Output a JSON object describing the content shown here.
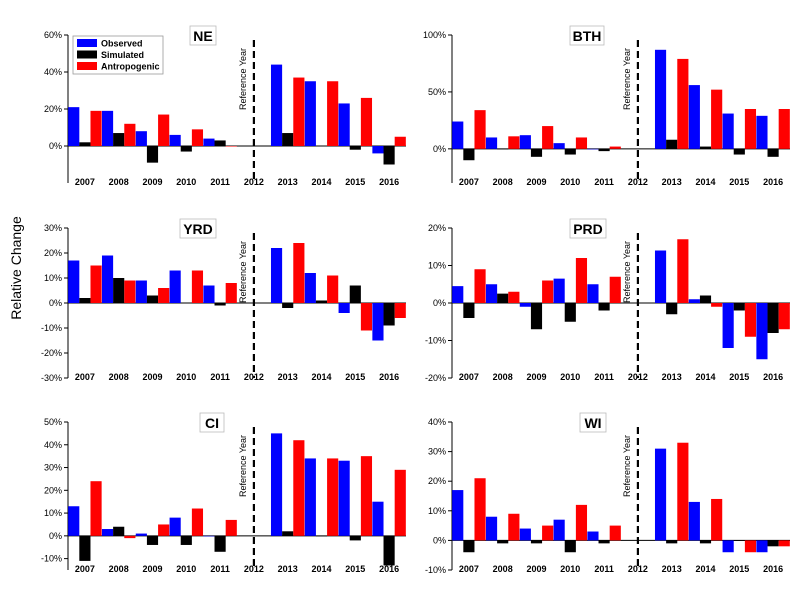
{
  "ylabel": "Relative Change",
  "legend": [
    "Observed",
    "Simulated",
    "Antropogenic"
  ],
  "reference_label": "Reference Year",
  "colors": {
    "Observed": "#0000ff",
    "Simulated": "#000000",
    "Antropogenic": "#ff0000"
  },
  "chart_data": [
    {
      "type": "bar",
      "title": "NE",
      "categories": [
        "2007",
        "2008",
        "2009",
        "2010",
        "2011",
        "2012",
        "2013",
        "2014",
        "2015",
        "2016"
      ],
      "ylim": [
        -20,
        60
      ],
      "yticks": [
        0,
        20,
        40,
        60
      ],
      "ytick_labels": [
        "0%",
        "20%",
        "40%",
        "60%"
      ],
      "series": [
        {
          "name": "Observed",
          "values": [
            21,
            19,
            8,
            6,
            4,
            null,
            44,
            35,
            23,
            -4
          ]
        },
        {
          "name": "Simulated",
          "values": [
            2,
            7,
            -9,
            -3,
            3,
            null,
            7,
            0,
            -2,
            -10
          ]
        },
        {
          "name": "Antropogenic",
          "values": [
            19,
            12,
            17,
            9,
            0,
            null,
            37,
            35,
            26,
            5
          ]
        }
      ]
    },
    {
      "type": "bar",
      "title": "BTH",
      "categories": [
        "2007",
        "2008",
        "2009",
        "2010",
        "2011",
        "2012",
        "2013",
        "2014",
        "2015",
        "2016"
      ],
      "ylim": [
        -30,
        100
      ],
      "yticks": [
        0,
        50,
        100
      ],
      "ytick_labels": [
        "0%",
        "50%",
        "100%"
      ],
      "series": [
        {
          "name": "Observed",
          "values": [
            24,
            10,
            12,
            5,
            0,
            null,
            87,
            56,
            31,
            29
          ]
        },
        {
          "name": "Simulated",
          "values": [
            -10,
            0,
            -7,
            -5,
            -2,
            null,
            8,
            2,
            -5,
            -7
          ]
        },
        {
          "name": "Antropogenic",
          "values": [
            34,
            11,
            20,
            10,
            2,
            null,
            79,
            52,
            35,
            35
          ]
        }
      ]
    },
    {
      "type": "bar",
      "title": "YRD",
      "categories": [
        "2007",
        "2008",
        "2009",
        "2010",
        "2011",
        "2012",
        "2013",
        "2014",
        "2015",
        "2016"
      ],
      "ylim": [
        -30,
        30
      ],
      "yticks": [
        -30,
        -20,
        -10,
        0,
        10,
        20,
        30
      ],
      "ytick_labels": [
        "-30%",
        "-20%",
        "-10%",
        "0%",
        "10%",
        "20%",
        "30%"
      ],
      "series": [
        {
          "name": "Observed",
          "values": [
            17,
            19,
            9,
            13,
            7,
            null,
            22,
            12,
            -4,
            -15
          ]
        },
        {
          "name": "Simulated",
          "values": [
            2,
            10,
            3,
            0,
            -1,
            null,
            -2,
            1,
            7,
            -9
          ]
        },
        {
          "name": "Antropogenic",
          "values": [
            15,
            9,
            6,
            13,
            8,
            null,
            24,
            11,
            -11,
            -6
          ]
        }
      ]
    },
    {
      "type": "bar",
      "title": "PRD",
      "categories": [
        "2007",
        "2008",
        "2009",
        "2010",
        "2011",
        "2012",
        "2013",
        "2014",
        "2015",
        "2016"
      ],
      "ylim": [
        -20,
        20
      ],
      "yticks": [
        -20,
        -10,
        0,
        10,
        20
      ],
      "ytick_labels": [
        "-20%",
        "-10%",
        "0%",
        "10%",
        "20%"
      ],
      "series": [
        {
          "name": "Observed",
          "values": [
            4.5,
            5,
            -1,
            6.5,
            5,
            null,
            14,
            1,
            -12,
            -15
          ]
        },
        {
          "name": "Simulated",
          "values": [
            -4,
            2.5,
            -7,
            -5,
            -2,
            null,
            -3,
            2,
            -2,
            -8
          ]
        },
        {
          "name": "Antropogenic",
          "values": [
            9,
            3,
            6,
            12,
            7,
            null,
            17,
            -1,
            -9,
            -7
          ]
        }
      ]
    },
    {
      "type": "bar",
      "title": "CI",
      "categories": [
        "2007",
        "2008",
        "2009",
        "2010",
        "2011",
        "2012",
        "2013",
        "2014",
        "2015",
        "2016"
      ],
      "ylim": [
        -15,
        50
      ],
      "yticks": [
        -10,
        0,
        10,
        20,
        30,
        40,
        50
      ],
      "ytick_labels": [
        "-10%",
        "0%",
        "10%",
        "20%",
        "30%",
        "40%",
        "50%"
      ],
      "series": [
        {
          "name": "Observed",
          "values": [
            13,
            3,
            1,
            8,
            0,
            null,
            45,
            34,
            33,
            15
          ]
        },
        {
          "name": "Simulated",
          "values": [
            -11,
            4,
            -4,
            -4,
            -7,
            null,
            2,
            0,
            -2,
            -13
          ]
        },
        {
          "name": "Antropogenic",
          "values": [
            24,
            -1,
            5,
            12,
            7,
            null,
            42,
            34,
            35,
            29
          ]
        }
      ]
    },
    {
      "type": "bar",
      "title": "WI",
      "categories": [
        "2007",
        "2008",
        "2009",
        "2010",
        "2011",
        "2012",
        "2013",
        "2014",
        "2015",
        "2016"
      ],
      "ylim": [
        -10,
        40
      ],
      "yticks": [
        -10,
        0,
        10,
        20,
        30,
        40
      ],
      "ytick_labels": [
        "-10%",
        "0%",
        "10%",
        "20%",
        "30%",
        "40%"
      ],
      "series": [
        {
          "name": "Observed",
          "values": [
            17,
            8,
            4,
            7,
            3,
            null,
            31,
            13,
            -4,
            -4
          ]
        },
        {
          "name": "Simulated",
          "values": [
            -4,
            -1,
            -1,
            -4,
            -1,
            null,
            -1,
            -1,
            0,
            -2
          ]
        },
        {
          "name": "Antropogenic",
          "values": [
            21,
            9,
            5,
            12,
            5,
            null,
            33,
            14,
            -4,
            -2
          ]
        }
      ]
    }
  ]
}
